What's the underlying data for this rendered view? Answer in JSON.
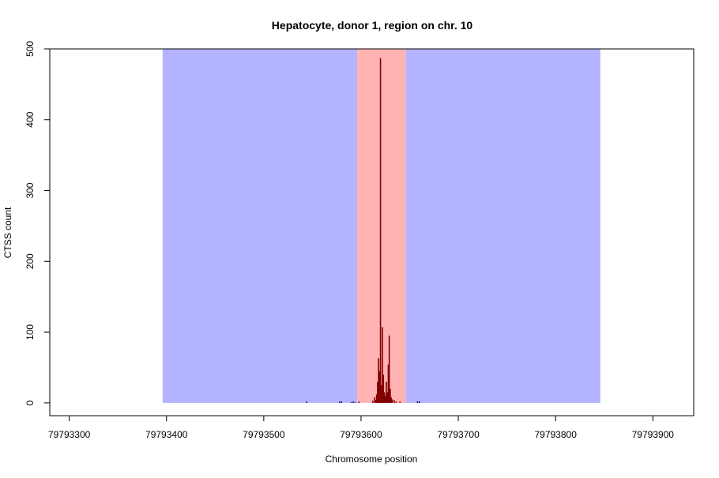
{
  "chart_data": {
    "type": "bar",
    "title": "Hepatocyte, donor 1, region on chr. 10",
    "xlabel": "Chromosome position",
    "ylabel": "CTSS count",
    "xlim": [
      79793280,
      79793942
    ],
    "ylim": [
      -18,
      500
    ],
    "x_ticks": [
      79793300,
      79793400,
      79793500,
      79793600,
      79793700,
      79793800,
      79793900
    ],
    "x_tick_labels": [
      "79793300",
      "79793400",
      "79793500",
      "79793600",
      "79793700",
      "79793800",
      "79793900"
    ],
    "y_ticks": [
      0,
      100,
      200,
      300,
      400,
      500
    ],
    "y_tick_labels": [
      "0",
      "100",
      "200",
      "300",
      "400",
      "500"
    ],
    "grid": false,
    "regions": [
      {
        "name": "flank-left",
        "x_start": 79793396,
        "x_end": 79793596,
        "y_max": 500,
        "color": "#b3b3ff"
      },
      {
        "name": "core",
        "x_start": 79793596,
        "x_end": 79793646,
        "y_max": 500,
        "color": "#ffb3b3"
      },
      {
        "name": "flank-right",
        "x_start": 79793646,
        "x_end": 79793846,
        "y_max": 500,
        "color": "#b3b3ff"
      }
    ],
    "series": [
      {
        "color": "#000080",
        "points": [
          {
            "x": 79793544,
            "y": 2
          },
          {
            "x": 79793578,
            "y": 2
          },
          {
            "x": 79793580,
            "y": 2
          },
          {
            "x": 79793590,
            "y": 1
          },
          {
            "x": 79793592,
            "y": 2
          },
          {
            "x": 79793594,
            "y": 1
          },
          {
            "x": 79793658,
            "y": 2
          },
          {
            "x": 79793660,
            "y": 2
          }
        ]
      },
      {
        "color": "#800000",
        "points": [
          {
            "x": 79793598,
            "y": 2
          },
          {
            "x": 79793612,
            "y": 3
          },
          {
            "x": 79793614,
            "y": 8
          },
          {
            "x": 79793615,
            "y": 4
          },
          {
            "x": 79793616,
            "y": 12
          },
          {
            "x": 79793617,
            "y": 30
          },
          {
            "x": 79793618,
            "y": 63
          },
          {
            "x": 79793619,
            "y": 45
          },
          {
            "x": 79793620,
            "y": 487
          },
          {
            "x": 79793621,
            "y": 25
          },
          {
            "x": 79793622,
            "y": 107
          },
          {
            "x": 79793623,
            "y": 40
          },
          {
            "x": 79793624,
            "y": 15
          },
          {
            "x": 79793625,
            "y": 10
          },
          {
            "x": 79793626,
            "y": 30
          },
          {
            "x": 79793627,
            "y": 15
          },
          {
            "x": 79793628,
            "y": 54
          },
          {
            "x": 79793629,
            "y": 95
          },
          {
            "x": 79793630,
            "y": 20
          },
          {
            "x": 79793631,
            "y": 8
          },
          {
            "x": 79793632,
            "y": 5
          },
          {
            "x": 79793634,
            "y": 4
          },
          {
            "x": 79793636,
            "y": 2
          },
          {
            "x": 79793640,
            "y": 2
          }
        ]
      }
    ]
  }
}
